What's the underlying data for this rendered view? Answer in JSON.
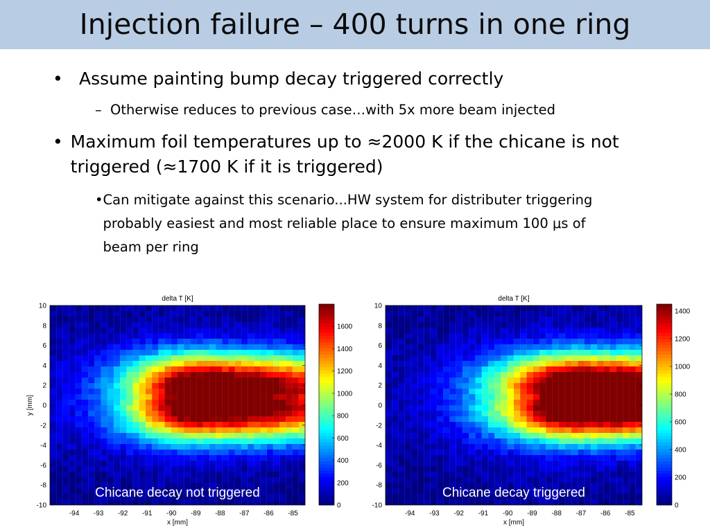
{
  "slide": {
    "title": "Injection failure – 400 turns in one ring",
    "bullets": [
      {
        "level": 1,
        "mark": "•",
        "text": "Assume painting bump decay triggered correctly"
      },
      {
        "level": 2,
        "mark": "–",
        "text": "Otherwise reduces to previous case…with 5x more beam injected"
      },
      {
        "level": 1,
        "mark": "•",
        "text": "Maximum foil temperatures up to ≈2000 K if the chicane is not triggered (≈1700 K  if it is triggered)"
      },
      {
        "level": 2,
        "mark": "•",
        "text": "Can mitigate against this scenario...HW system for distributer triggering probably easiest and most reliable place to ensure maximum 100 μs of beam per ring"
      }
    ]
  },
  "colors": {
    "title_bar": "#b8cce4",
    "caption_text": "#ffffff"
  },
  "chart_data": [
    {
      "type": "heatmap",
      "title": "delta T [K]",
      "xlabel": "x [mm]",
      "ylabel": "y [mm]",
      "xlim": [
        -95,
        -84.5
      ],
      "ylim": [
        -10,
        10
      ],
      "xticks": [
        -94,
        -93,
        -92,
        -91,
        -90,
        -89,
        -88,
        -87,
        -86,
        -85
      ],
      "yticks": [
        -10,
        -8,
        -6,
        -4,
        -2,
        0,
        2,
        4,
        6,
        8,
        10
      ],
      "colorbar": {
        "min": 0,
        "max": 1800,
        "ticks": [
          0,
          200,
          400,
          600,
          800,
          1000,
          1200,
          1400,
          1600
        ]
      },
      "peak_value": 2000,
      "hotspot_center": {
        "x": -88.8,
        "y": 0.8
      },
      "hotspot_sigma": {
        "x": 1.9,
        "y": 2.4
      },
      "annotation": "Chicane decay not triggered"
    },
    {
      "type": "heatmap",
      "title": "delta T [K]",
      "xlabel": "x [mm]",
      "ylabel": "",
      "xlim": [
        -95,
        -84.5
      ],
      "ylim": [
        -10,
        10
      ],
      "xticks": [
        -94,
        -93,
        -92,
        -91,
        -90,
        -89,
        -88,
        -87,
        -86,
        -85
      ],
      "yticks": [
        -10,
        -8,
        -6,
        -4,
        -2,
        0,
        2,
        4,
        6,
        8,
        10
      ],
      "colorbar": {
        "min": 0,
        "max": 1450,
        "ticks": [
          0,
          200,
          400,
          600,
          800,
          1000,
          1200,
          1400
        ]
      },
      "peak_value": 1700,
      "hotspot_center": {
        "x": -87.0,
        "y": 0.8
      },
      "hotspot_sigma": {
        "x": 2.2,
        "y": 2.4
      },
      "annotation": "Chicane decay triggered"
    }
  ]
}
